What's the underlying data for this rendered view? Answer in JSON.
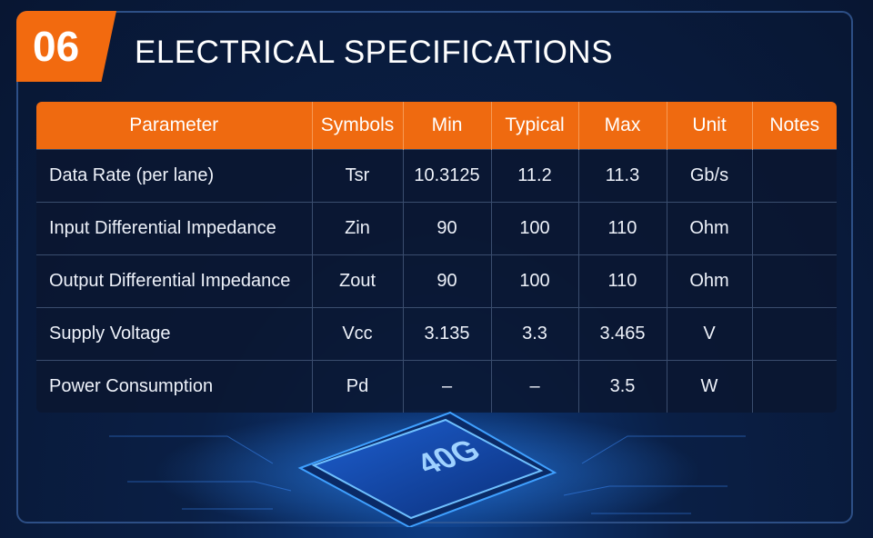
{
  "header": {
    "number": "06",
    "title": "ELECTRICAL SPECIFICATIONS"
  },
  "table": {
    "columns": [
      "Parameter",
      "Symbols",
      "Min",
      "Typical",
      "Max",
      "Unit",
      "Notes"
    ],
    "rows": [
      [
        "Data Rate (per lane)",
        "Tsr",
        "10.3125",
        "11.2",
        "11.3",
        "Gb/s"
      ],
      [
        "Input Differential Impedance",
        "Zin",
        "90",
        "100",
        "110",
        "Ohm"
      ],
      [
        "Output Differential Impedance",
        "Zout",
        "90",
        "100",
        "110",
        "Ohm"
      ],
      [
        "Supply Voltage",
        "Vcc",
        "3.135",
        "3.3",
        "3.465",
        "V"
      ],
      [
        "Power Consumption",
        "Pd",
        "–",
        "–",
        "3.5",
        "W"
      ]
    ]
  },
  "chip": {
    "label": "40G"
  }
}
